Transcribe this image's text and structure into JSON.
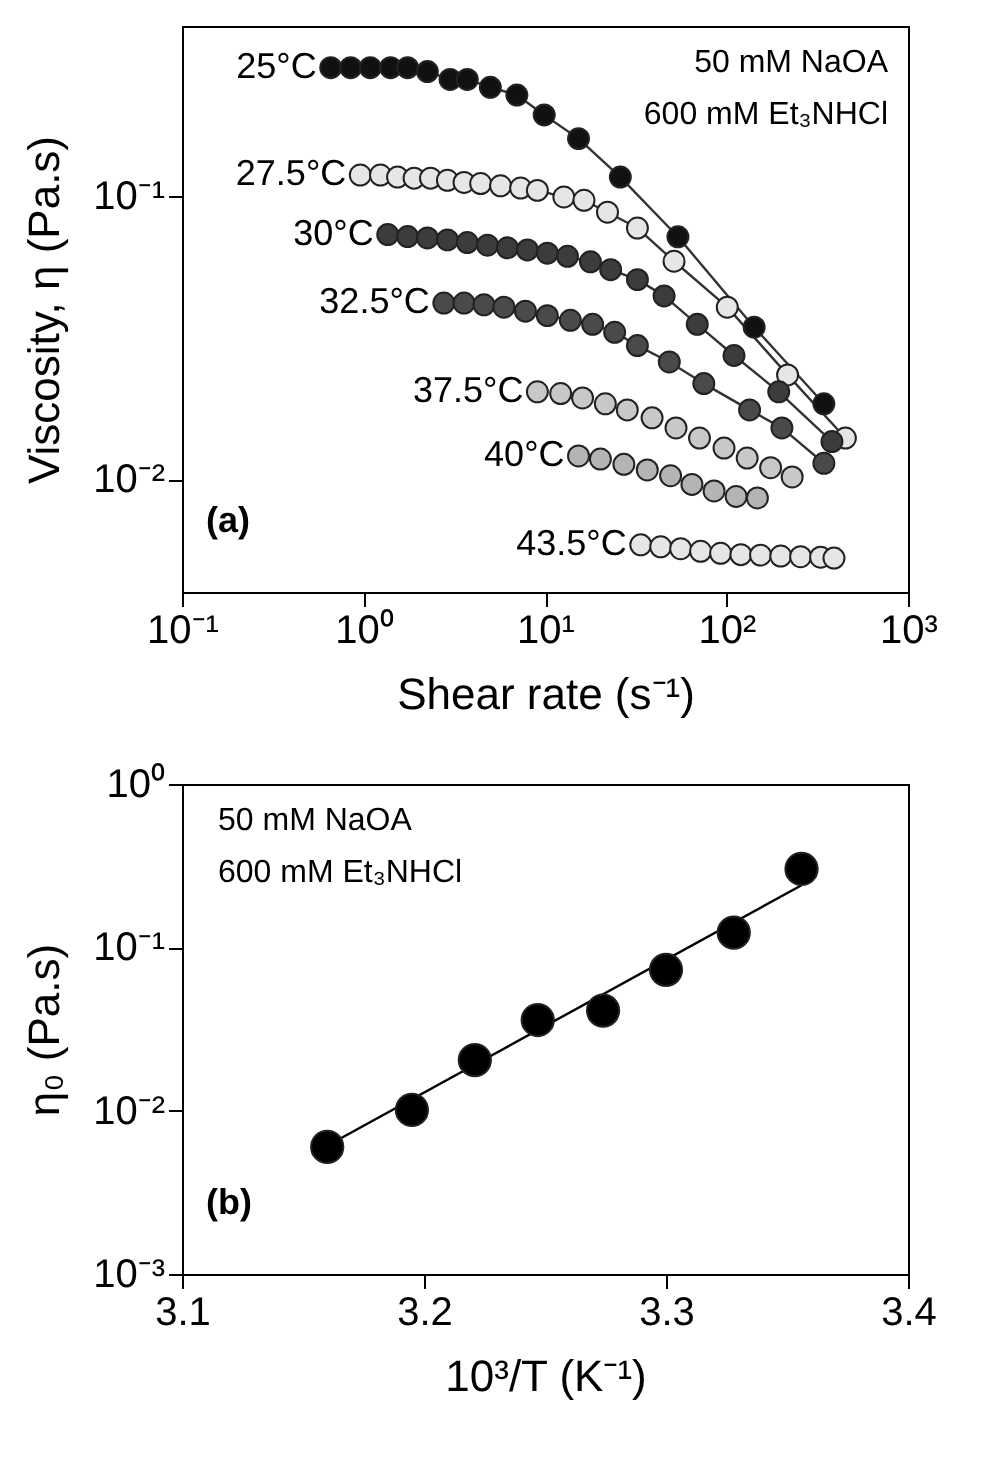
{
  "chart_data": [
    {
      "type": "scatter",
      "xlabel": "Shear rate (s⁻¹)",
      "ylabel": "Viscosity, η (Pa.s)",
      "log": "xy",
      "marker": "circle",
      "xlim": [
        0.1,
        1000
      ],
      "xticks": [
        {
          "value": 0.1,
          "label": "10⁻¹"
        },
        {
          "value": 1,
          "label": "10⁰"
        },
        {
          "value": 10,
          "label": "10¹"
        },
        {
          "value": 100,
          "label": "10²"
        },
        {
          "value": 1000,
          "label": "10³"
        }
      ],
      "ylim": [
        0.004,
        0.4
      ],
      "yticks": [
        {
          "value": 0.01,
          "label": "10⁻²"
        },
        {
          "value": 0.1,
          "label": "10⁻¹"
        }
      ],
      "annotations": [
        "50 mM NaOA",
        "600 mM Et₃NHCl",
        "(a)"
      ],
      "series": [
        {
          "name": "25°C",
          "type": "line",
          "color": "#111111",
          "x": [
            0.66,
            0.85,
            1.09,
            1.41,
            1.75,
            2.25,
            3.0,
            3.73,
            5.0,
            7.0,
            9.9,
            15.3,
            26,
            54,
            142,
            344
          ],
          "values": [
            0.285,
            0.285,
            0.285,
            0.285,
            0.285,
            0.276,
            0.259,
            0.259,
            0.243,
            0.228,
            0.194,
            0.16,
            0.117,
            0.072,
            0.0345,
            0.0185
          ]
        },
        {
          "name": "27.5°C",
          "type": "line",
          "color": "#e6e6e6",
          "x": [
            0.96,
            1.24,
            1.54,
            1.9,
            2.34,
            2.9,
            3.58,
            4.42,
            5.69,
            7.34,
            9.08,
            12.7,
            16.4,
            22.1,
            32.3,
            51.4,
            101,
            217,
            452
          ],
          "values": [
            0.119,
            0.119,
            0.117,
            0.116,
            0.116,
            0.114,
            0.112,
            0.111,
            0.109,
            0.107,
            0.105,
            0.0995,
            0.0969,
            0.0879,
            0.0773,
            0.059,
            0.0406,
            0.0234,
            0.014
          ]
        },
        {
          "name": "30°C",
          "type": "line",
          "color": "#3c3c3c",
          "x": [
            1.36,
            1.75,
            2.25,
            2.9,
            3.73,
            4.82,
            6.21,
            8.0,
            10.3,
            13.3,
            17.8,
            23.0,
            32.3,
            45.3,
            69,
            110,
            194,
            381
          ],
          "values": [
            0.0733,
            0.0721,
            0.0713,
            0.0702,
            0.0687,
            0.0672,
            0.0658,
            0.0647,
            0.063,
            0.0614,
            0.0587,
            0.0551,
            0.0508,
            0.0445,
            0.0353,
            0.0274,
            0.0204,
            0.0136
          ]
        },
        {
          "name": "32.5°C",
          "type": "line",
          "color": "#4a4a4a",
          "x": [
            2.77,
            3.58,
            4.61,
            5.94,
            7.8,
            10.3,
            13.8,
            18.3,
            24.2,
            32.3,
            48.4,
            75,
            134,
            202,
            344
          ],
          "values": [
            0.042,
            0.042,
            0.0414,
            0.0406,
            0.0393,
            0.0379,
            0.0365,
            0.0353,
            0.0331,
            0.0297,
            0.026,
            0.0218,
            0.0176,
            0.0152,
            0.0114
          ]
        },
        {
          "name": "37.5°C",
          "color": "#c8c8c8",
          "x": [
            9.08,
            12.2,
            16.1,
            21.5,
            28.4,
            38.9,
            52.7,
            71,
            96.9,
            130,
            175,
            230
          ],
          "values": [
            0.0204,
            0.0201,
            0.0194,
            0.0185,
            0.0176,
            0.0165,
            0.0152,
            0.014,
            0.0129,
            0.0119,
            0.011,
            0.0102
          ]
        },
        {
          "name": "40°C",
          "color": "#b4b4b4",
          "x": [
            15.3,
            20.2,
            27.2,
            36.6,
            49.2,
            64.5,
            85.4,
            113,
            148
          ],
          "values": [
            0.0121,
            0.0118,
            0.0113,
            0.0108,
            0.0103,
            0.0096,
            0.0091,
            0.0087,
            0.0086
          ]
        },
        {
          "name": "43.5°C",
          "color": "#e6e6e6",
          "x": [
            33.7,
            43.4,
            55.9,
            72,
            92.8,
            120,
            154,
            199,
            256,
            330,
            391
          ],
          "values": [
            0.00587,
            0.00578,
            0.00569,
            0.00557,
            0.00548,
            0.00542,
            0.0054,
            0.00536,
            0.00533,
            0.00531,
            0.00527
          ]
        }
      ]
    },
    {
      "type": "scatter",
      "xlabel": "10³/T (K⁻¹)",
      "ylabel": "η₀ (Pa.s)",
      "log": true,
      "marker": "circle",
      "xlim": [
        3.1,
        3.4
      ],
      "xticks": [
        3.1,
        3.2,
        3.3,
        3.4
      ],
      "ylim": [
        0.001,
        1
      ],
      "yticks": [
        {
          "value": 0.001,
          "label": "10⁻³"
        },
        {
          "value": 0.01,
          "label": "10⁻²"
        },
        {
          "value": 0.1,
          "label": "10⁻¹"
        },
        {
          "value": 1,
          "label": "10⁰"
        }
      ],
      "annotations": [
        "50 mM NaOA",
        "600 mM Et₃NHCl",
        "(b)"
      ],
      "series": [
        {
          "color": "#000000",
          "x": [
            3.16,
            3.195,
            3.221,
            3.247,
            3.274,
            3.3,
            3.328,
            3.356
          ],
          "values": [
            0.006,
            0.0101,
            0.0204,
            0.0359,
            0.041,
            0.0728,
            0.123,
            0.302
          ]
        },
        {
          "type": "line",
          "marker": "none",
          "color": "#000000",
          "x": [
            3.16,
            3.356
          ],
          "values": [
            0.0061,
            0.24
          ]
        }
      ]
    }
  ]
}
